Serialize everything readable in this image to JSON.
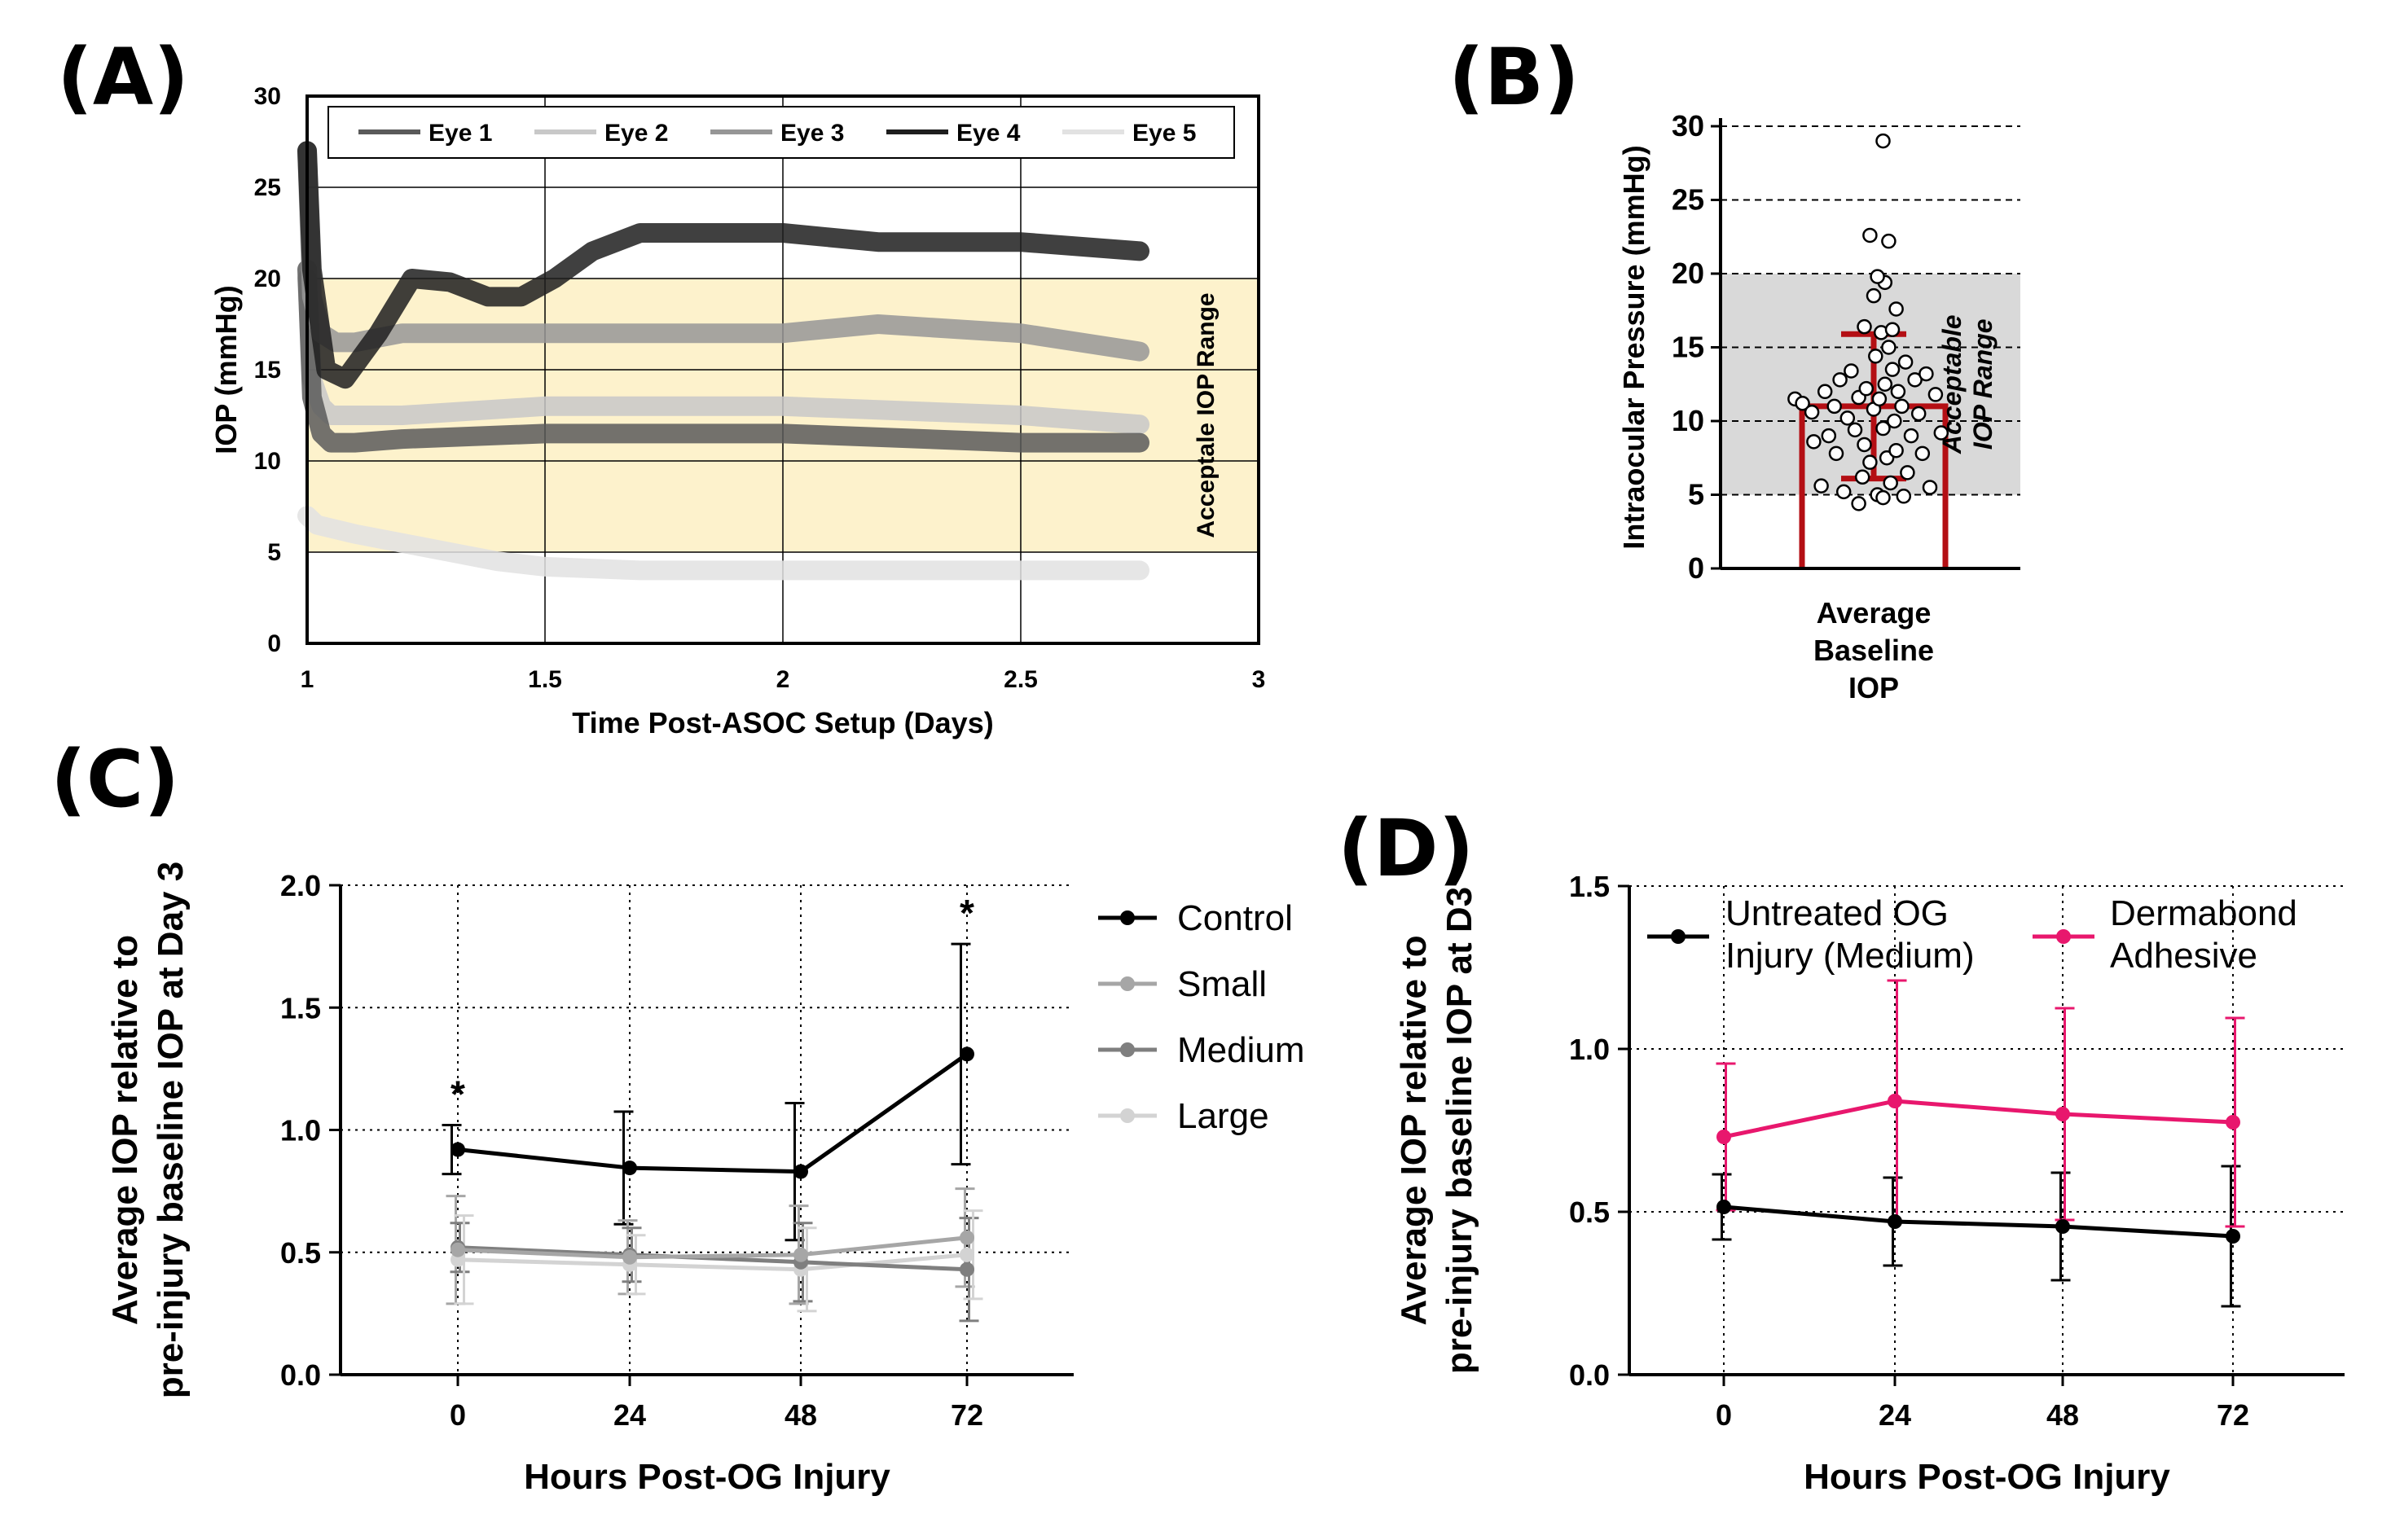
{
  "panels": {
    "a": "(A)",
    "b": "(B)",
    "c": "(C)",
    "d": "(D)"
  },
  "chart_data": [
    {
      "id": "A",
      "type": "line",
      "xlabel": "Time Post-ASOC Setup (Days)",
      "ylabel": "IOP (mmHg)",
      "xlim": [
        1,
        3
      ],
      "ylim": [
        0,
        30
      ],
      "xticks": [
        "1",
        "1.5",
        "2",
        "2.5",
        "3"
      ],
      "yticks": [
        "0",
        "5",
        "10",
        "15",
        "20",
        "25",
        "30"
      ],
      "shaded_band": {
        "range": [
          5,
          20
        ],
        "label": "Acceptale IOP Range",
        "color": "#fdf2cc"
      },
      "legend_position": "top",
      "series": [
        {
          "name": "Eye 1",
          "color": "#5a5a5a",
          "x": [
            1.0,
            1.01,
            1.03,
            1.05,
            1.1,
            1.2,
            1.5,
            2.0,
            2.5,
            2.75
          ],
          "values": [
            20.5,
            13.5,
            11.5,
            11.0,
            11.0,
            11.2,
            11.5,
            11.5,
            11.0,
            11.0
          ]
        },
        {
          "name": "Eye 2",
          "color": "#c8c8c8",
          "x": [
            1.0,
            1.01,
            1.03,
            1.05,
            1.1,
            1.2,
            1.5,
            2.0,
            2.5,
            2.75
          ],
          "values": [
            20.0,
            14.5,
            13.0,
            12.5,
            12.5,
            12.5,
            13.0,
            13.0,
            12.5,
            12.0
          ]
        },
        {
          "name": "Eye 3",
          "color": "#969696",
          "x": [
            1.0,
            1.01,
            1.03,
            1.06,
            1.1,
            1.2,
            1.3,
            1.5,
            2.0,
            2.2,
            2.5,
            2.75
          ],
          "values": [
            27.0,
            19.0,
            17.0,
            16.5,
            16.5,
            17.0,
            17.0,
            17.0,
            17.0,
            17.5,
            17.0,
            16.0
          ]
        },
        {
          "name": "Eye 4",
          "color": "#1e1e1e",
          "x": [
            1.0,
            1.01,
            1.04,
            1.08,
            1.15,
            1.22,
            1.3,
            1.38,
            1.45,
            1.52,
            1.6,
            1.7,
            2.0,
            2.2,
            2.5,
            2.75
          ],
          "values": [
            27.0,
            20.5,
            15.0,
            14.5,
            17.0,
            20.0,
            19.8,
            19.0,
            19.0,
            20.0,
            21.5,
            22.5,
            22.5,
            22.0,
            22.0,
            21.5
          ]
        },
        {
          "name": "Eye 5",
          "color": "#e2e2e2",
          "x": [
            1.0,
            1.02,
            1.1,
            1.2,
            1.3,
            1.4,
            1.5,
            1.7,
            2.0,
            2.5,
            2.75
          ],
          "values": [
            7.0,
            6.5,
            6.0,
            5.5,
            5.0,
            4.5,
            4.2,
            4.0,
            4.0,
            4.0,
            4.0
          ]
        }
      ]
    },
    {
      "id": "B",
      "type": "bar",
      "categories": [
        "Average Baseline IOP"
      ],
      "category_lines": [
        "Average",
        "Baseline",
        "IOP"
      ],
      "values": [
        11.0
      ],
      "sd": 4.9,
      "ylabel": "Intraocular Pressure (mmHg)",
      "ylim": [
        0,
        30
      ],
      "yticks": [
        "0",
        "5",
        "10",
        "15",
        "20",
        "25",
        "30"
      ],
      "shaded_band": {
        "range": [
          5,
          20
        ],
        "label_lines": [
          "Acceptable",
          "IOP Range"
        ],
        "color": "#d9d9d9"
      },
      "bar_color": "#b40f14",
      "points": [
        [
          -0.42,
          11.5
        ],
        [
          -0.38,
          11.2
        ],
        [
          -0.33,
          10.6
        ],
        [
          -0.32,
          8.6
        ],
        [
          -0.26,
          12.0
        ],
        [
          -0.24,
          9.0
        ],
        [
          -0.21,
          11.0
        ],
        [
          -0.2,
          7.8
        ],
        [
          -0.18,
          12.8
        ],
        [
          -0.14,
          10.2
        ],
        [
          -0.12,
          13.4
        ],
        [
          -0.1,
          9.4
        ],
        [
          -0.08,
          11.6
        ],
        [
          -0.06,
          6.2
        ],
        [
          -0.05,
          8.4
        ],
        [
          -0.04,
          12.2
        ],
        [
          -0.02,
          7.2
        ],
        [
          0.0,
          10.8
        ],
        [
          0.01,
          14.4
        ],
        [
          0.02,
          5.0
        ],
        [
          0.03,
          11.5
        ],
        [
          0.04,
          16.0
        ],
        [
          0.05,
          9.5
        ],
        [
          0.06,
          12.5
        ],
        [
          0.07,
          7.5
        ],
        [
          0.08,
          15.0
        ],
        [
          0.09,
          5.8
        ],
        [
          0.1,
          13.5
        ],
        [
          0.11,
          10.0
        ],
        [
          0.12,
          8.0
        ],
        [
          0.13,
          12.0
        ],
        [
          0.15,
          11.0
        ],
        [
          0.17,
          14.0
        ],
        [
          0.18,
          6.5
        ],
        [
          0.2,
          9.0
        ],
        [
          0.22,
          12.8
        ],
        [
          0.24,
          10.5
        ],
        [
          0.26,
          7.8
        ],
        [
          0.28,
          13.2
        ],
        [
          0.3,
          5.5
        ],
        [
          0.33,
          11.8
        ],
        [
          0.36,
          9.2
        ],
        [
          -0.28,
          5.6
        ],
        [
          -0.16,
          5.2
        ],
        [
          -0.08,
          4.4
        ],
        [
          0.05,
          4.8
        ],
        [
          0.16,
          4.9
        ],
        [
          0.0,
          18.5
        ],
        [
          0.06,
          19.4
        ],
        [
          0.12,
          17.6
        ],
        [
          -0.05,
          16.4
        ],
        [
          0.1,
          16.2
        ],
        [
          0.02,
          19.8
        ],
        [
          -0.02,
          22.6
        ],
        [
          0.08,
          22.2
        ],
        [
          0.05,
          29.0
        ]
      ]
    },
    {
      "id": "C",
      "type": "line",
      "categories": [
        "0",
        "24",
        "48",
        "72"
      ],
      "xlabel": "Hours Post-OG Injury",
      "ylabel_lines": [
        "Average IOP relative to",
        "pre-injury baseline IOP at Day 3"
      ],
      "ylim": [
        0,
        2.0
      ],
      "yticks": [
        "0.0",
        "0.5",
        "1.0",
        "1.5",
        "2.0"
      ],
      "annotations": [
        {
          "x": "0",
          "text": "*"
        },
        {
          "x": "72",
          "text": "*"
        }
      ],
      "legend_position": "right",
      "series": [
        {
          "name": "Control",
          "color": "#000000",
          "values": [
            0.92,
            0.845,
            0.83,
            1.31
          ],
          "err": [
            0.1,
            0.23,
            0.28,
            0.45
          ]
        },
        {
          "name": "Small",
          "color": "#a6a6a6",
          "values": [
            0.51,
            0.48,
            0.49,
            0.56
          ],
          "err": [
            0.22,
            0.15,
            0.2,
            0.2
          ]
        },
        {
          "name": "Medium",
          "color": "#7f7f7f",
          "values": [
            0.52,
            0.49,
            0.46,
            0.43
          ],
          "err": [
            0.1,
            0.11,
            0.16,
            0.21
          ]
        },
        {
          "name": "Large",
          "color": "#d3d3d3",
          "values": [
            0.47,
            0.45,
            0.43,
            0.49
          ],
          "err": [
            0.18,
            0.12,
            0.17,
            0.18
          ]
        }
      ]
    },
    {
      "id": "D",
      "type": "line",
      "categories": [
        "0",
        "24",
        "48",
        "72"
      ],
      "xlabel": "Hours Post-OG Injury",
      "ylabel_lines": [
        "Average IOP relative to",
        "pre-injury baseline IOP at D3"
      ],
      "ylim": [
        0,
        1.5
      ],
      "yticks": [
        "0.0",
        "0.5",
        "1.0",
        "1.5"
      ],
      "legend_position": "top",
      "series": [
        {
          "name": "Untreated OG Injury (Medium)",
          "name_lines": [
            "Untreated OG",
            "Injury (Medium)"
          ],
          "color": "#000000",
          "values": [
            0.515,
            0.47,
            0.455,
            0.425
          ],
          "err": [
            0.1,
            0.135,
            0.165,
            0.215
          ]
        },
        {
          "name": "Dermabond Adhesive",
          "name_lines": [
            "Dermabond",
            "Adhesive"
          ],
          "color": "#e8176d",
          "values": [
            0.73,
            0.84,
            0.8,
            0.775
          ],
          "err": [
            0.225,
            0.37,
            0.325,
            0.32
          ]
        }
      ]
    }
  ]
}
